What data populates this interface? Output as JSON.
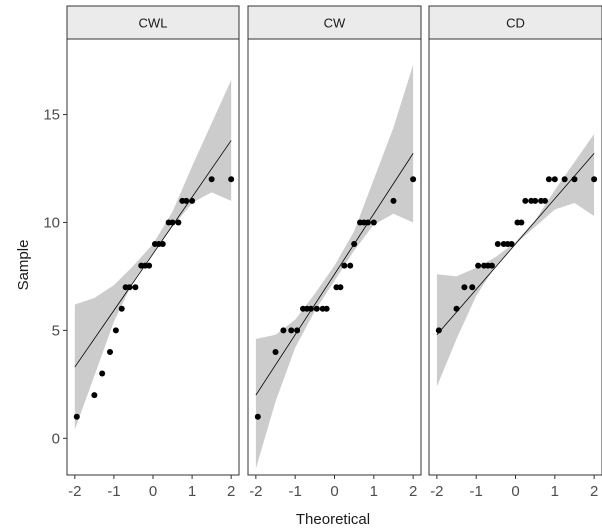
{
  "chart_data": {
    "type": "scatter",
    "subtype": "qq-plot-faceted",
    "xlabel": "Theoretical",
    "ylabel": "Sample",
    "xlim": [
      -2.2,
      2.2
    ],
    "ylim": [
      -1.7,
      18.5
    ],
    "x_ticks": [
      -2,
      -1,
      0,
      1,
      2
    ],
    "x_tick_labels": [
      "-2",
      "-1",
      "0",
      "1",
      "2"
    ],
    "y_ticks": [
      0,
      5,
      10,
      15
    ],
    "y_tick_labels": [
      "0",
      "5",
      "10",
      "15"
    ],
    "grid": false,
    "confidence_band_color": "#cccccc",
    "point_color": "#000000",
    "line_color": "#000000",
    "strip_color": "#ebebeb",
    "facets": [
      {
        "name": "CWL",
        "line": [
          [
            -2,
            3.3
          ],
          [
            2,
            13.8
          ]
        ],
        "band_lower": [
          [
            -2,
            0.4
          ],
          [
            -1.5,
            2.9
          ],
          [
            -1,
            5.4
          ],
          [
            -0.5,
            7.3
          ],
          [
            0,
            8.6
          ],
          [
            0.5,
            9.8
          ],
          [
            1,
            10.9
          ],
          [
            1.5,
            11.4
          ],
          [
            2,
            11.0
          ]
        ],
        "band_upper": [
          [
            -2,
            6.2
          ],
          [
            -1.5,
            6.5
          ],
          [
            -1,
            7.1
          ],
          [
            -0.5,
            8.0
          ],
          [
            0,
            9.0
          ],
          [
            0.5,
            10.5
          ],
          [
            1,
            12.6
          ],
          [
            1.5,
            14.6
          ],
          [
            2,
            16.6
          ]
        ],
        "x": [
          -1.95,
          -1.5,
          -1.3,
          -1.1,
          -0.95,
          -0.8,
          -0.7,
          -0.6,
          -0.45,
          -0.3,
          -0.2,
          -0.1,
          0.05,
          0.15,
          0.25,
          0.4,
          0.5,
          0.65,
          0.75,
          0.85,
          1.0,
          1.5,
          2.0
        ],
        "y": [
          1,
          2,
          3,
          4,
          5,
          6,
          7,
          7,
          7,
          8,
          8,
          8,
          9,
          9,
          9,
          10,
          10,
          10,
          11,
          11,
          11,
          12,
          12
        ]
      },
      {
        "name": "CW",
        "line": [
          [
            -2,
            2.0
          ],
          [
            2,
            13.2
          ]
        ],
        "band_lower": [
          [
            -2,
            -1.4
          ],
          [
            -1.5,
            1.7
          ],
          [
            -1,
            4.2
          ],
          [
            -0.5,
            5.9
          ],
          [
            0,
            7.3
          ],
          [
            0.5,
            8.7
          ],
          [
            1,
            9.9
          ],
          [
            1.5,
            10.4
          ],
          [
            2,
            10.0
          ]
        ],
        "band_upper": [
          [
            -2,
            4.6
          ],
          [
            -1.5,
            4.8
          ],
          [
            -1,
            5.5
          ],
          [
            -0.5,
            6.7
          ],
          [
            0,
            8.0
          ],
          [
            0.5,
            9.6
          ],
          [
            1,
            12.0
          ],
          [
            1.5,
            14.4
          ],
          [
            2,
            17.3
          ]
        ],
        "x": [
          -1.95,
          -1.5,
          -1.3,
          -1.1,
          -0.95,
          -0.8,
          -0.7,
          -0.6,
          -0.45,
          -0.3,
          -0.2,
          0.05,
          0.15,
          0.25,
          0.4,
          0.5,
          0.65,
          0.75,
          0.85,
          1.0,
          1.5,
          2.0
        ],
        "y": [
          1,
          4,
          5,
          5,
          5,
          6,
          6,
          6,
          6,
          6,
          6,
          7,
          7,
          8,
          8,
          9,
          10,
          10,
          10,
          10,
          11,
          12
        ]
      },
      {
        "name": "CD",
        "line": [
          [
            -2,
            4.8
          ],
          [
            2,
            13.2
          ]
        ],
        "band_lower": [
          [
            -2,
            2.4
          ],
          [
            -1.5,
            4.6
          ],
          [
            -1,
            6.6
          ],
          [
            -0.5,
            8.0
          ],
          [
            0,
            9.0
          ],
          [
            0.5,
            9.8
          ],
          [
            1,
            10.6
          ],
          [
            1.5,
            10.9
          ],
          [
            2,
            10.3
          ]
        ],
        "band_upper": [
          [
            -2,
            7.6
          ],
          [
            -1.5,
            7.5
          ],
          [
            -1,
            7.9
          ],
          [
            -0.5,
            8.4
          ],
          [
            0,
            9.1
          ],
          [
            0.5,
            10.1
          ],
          [
            1,
            11.5
          ],
          [
            1.5,
            12.8
          ],
          [
            2,
            14.1
          ]
        ],
        "x": [
          -1.95,
          -1.5,
          -1.3,
          -1.1,
          -0.95,
          -0.8,
          -0.7,
          -0.6,
          -0.45,
          -0.3,
          -0.2,
          -0.1,
          0.05,
          0.15,
          0.25,
          0.4,
          0.5,
          0.65,
          0.75,
          0.85,
          1.0,
          1.25,
          1.5,
          2.0
        ],
        "y": [
          5,
          6,
          7,
          7,
          8,
          8,
          8,
          8,
          9,
          9,
          9,
          9,
          10,
          10,
          11,
          11,
          11,
          11,
          11,
          12,
          12,
          12,
          12,
          12
        ]
      }
    ]
  }
}
